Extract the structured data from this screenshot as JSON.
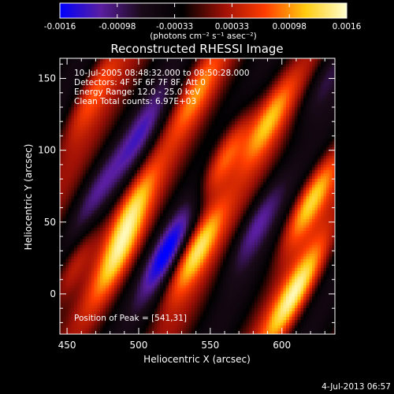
{
  "chart_data": {
    "type": "heatmap",
    "title": "Reconstructed RHESSI Image",
    "xlabel": "Heliocentric X (arcsec)",
    "ylabel": "Heliocentric Y (arcsec)",
    "xlim": [
      445,
      637
    ],
    "ylim": [
      -28,
      164
    ],
    "x_ticks": [
      450,
      500,
      550,
      600
    ],
    "y_ticks": [
      0,
      50,
      100,
      150
    ],
    "colorbar": {
      "range": [
        -0.0016,
        0.0016
      ],
      "ticks": [
        "-0.0016",
        "-0.00098",
        "-0.00033",
        "0.00033",
        "0.00098",
        "0.0016"
      ],
      "units": "(photons cm⁻² s⁻¹ asec⁻²)",
      "colors": [
        "#0000ff",
        "#5a1ea0",
        "#1a0a18",
        "#000000",
        "#9e1006",
        "#ff3c00",
        "#ffcc10",
        "#ffffd0"
      ]
    },
    "annotations": [
      "10-Jul-2005 08:48:32.000 to 08:50:28.000",
      "Detectors: 4F 5F 6F 7F 8F, Att 0",
      "Energy Range: 12.0 - 25.0 keV",
      "Clean     Total counts: 6.97E+03"
    ],
    "peak_label": "Position of Peak = [541,31]",
    "peak": [
      541,
      31
    ],
    "footer_date": "4-Jul-2013 06:57",
    "stripes": [
      {
        "x": 468,
        "y": 140,
        "amp": 0.55
      },
      {
        "x": 502,
        "y": 112,
        "amp": -0.55
      },
      {
        "x": 485,
        "y": 25,
        "amp": 0.75
      },
      {
        "x": 520,
        "y": 30,
        "amp": -0.85
      },
      {
        "x": 541,
        "y": 31,
        "amp": 1.0
      },
      {
        "x": 560,
        "y": 95,
        "amp": 0.9
      },
      {
        "x": 582,
        "y": 48,
        "amp": -0.6
      },
      {
        "x": 590,
        "y": 120,
        "amp": 0.8
      },
      {
        "x": 620,
        "y": 65,
        "amp": 1.0
      },
      {
        "x": 615,
        "y": 10,
        "amp": 0.7
      },
      {
        "x": 470,
        "y": 70,
        "amp": -0.45
      },
      {
        "x": 495,
        "y": 60,
        "amp": 0.75
      },
      {
        "x": 630,
        "y": 150,
        "amp": -0.5
      },
      {
        "x": 540,
        "y": 140,
        "amp": 0.6
      },
      {
        "x": 455,
        "y": 20,
        "amp": 0.6
      },
      {
        "x": 600,
        "y": -15,
        "amp": 0.55
      }
    ]
  }
}
